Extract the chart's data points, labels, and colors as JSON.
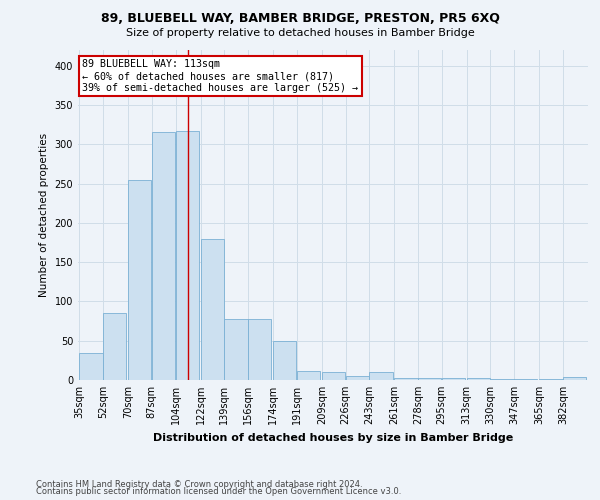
{
  "title1": "89, BLUEBELL WAY, BAMBER BRIDGE, PRESTON, PR5 6XQ",
  "title2": "Size of property relative to detached houses in Bamber Bridge",
  "xlabel": "Distribution of detached houses by size in Bamber Bridge",
  "ylabel": "Number of detached properties",
  "footnote1": "Contains HM Land Registry data © Crown copyright and database right 2024.",
  "footnote2": "Contains public sector information licensed under the Open Government Licence v3.0.",
  "bins": [
    35,
    52,
    70,
    87,
    104,
    122,
    139,
    156,
    174,
    191,
    209,
    226,
    243,
    261,
    278,
    295,
    313,
    330,
    347,
    365,
    382
  ],
  "values": [
    35,
    85,
    255,
    315,
    317,
    180,
    78,
    78,
    50,
    12,
    10,
    5,
    10,
    2,
    2,
    2,
    2,
    1,
    1,
    1,
    4
  ],
  "bar_color": "#cce0f0",
  "bar_edge_color": "#7ab0d4",
  "grid_color": "#d0dde8",
  "property_size": 113,
  "red_line_color": "#cc0000",
  "annotation_text": "89 BLUEBELL WAY: 113sqm\n← 60% of detached houses are smaller (817)\n39% of semi-detached houses are larger (525) →",
  "annotation_box_color": "white",
  "annotation_box_edge": "#cc0000",
  "ylim": [
    0,
    420
  ],
  "yticks": [
    0,
    50,
    100,
    150,
    200,
    250,
    300,
    350,
    400
  ],
  "bg_color": "#eef3f9"
}
